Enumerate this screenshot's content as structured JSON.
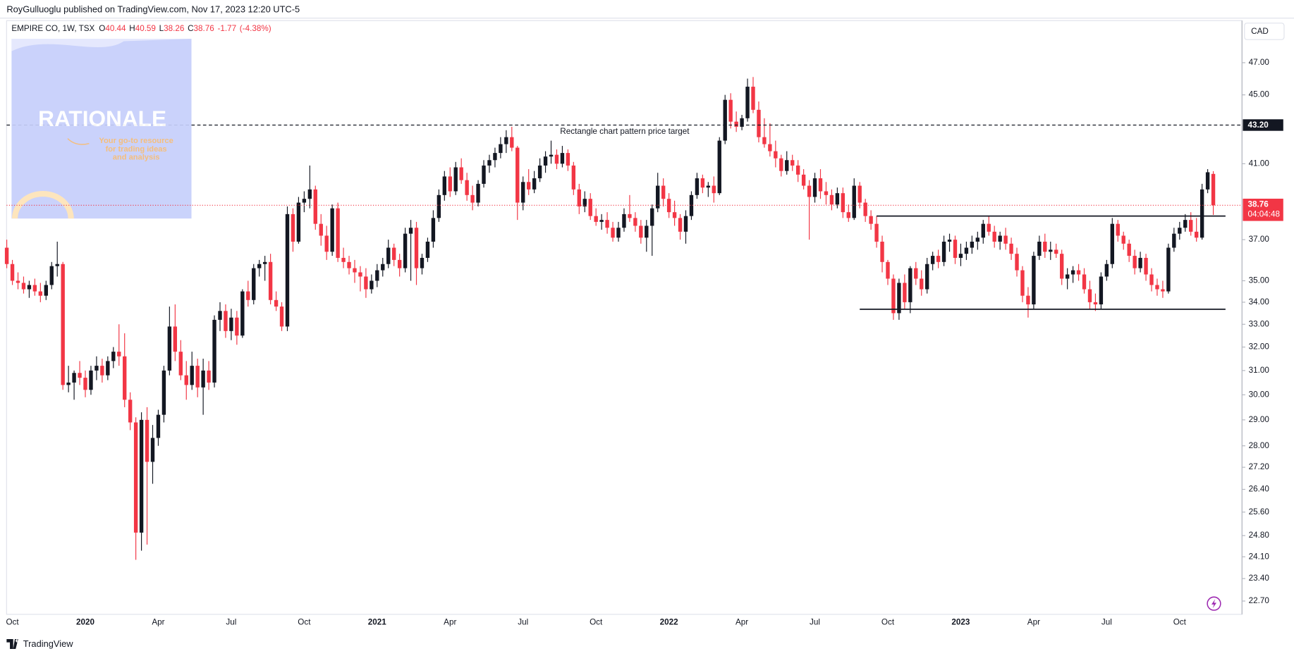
{
  "header": {
    "publisher": "RoyGulluoglu published on TradingView.com, Nov 17, 2023 12:20 UTC-5"
  },
  "watermark": {
    "title": "RATIONALE",
    "tagline": [
      "Your go-to resource",
      "for trading ideas",
      "and analysis"
    ]
  },
  "footer": {
    "brand": "TradingView"
  },
  "chart_data": {
    "type": "candlestick",
    "legend": {
      "symbol": "EMPIRE CO, 1W, TSX",
      "open_label": "O",
      "high_label": "H",
      "low_label": "L",
      "close_label": "C",
      "change": -1.77,
      "change_percent": {
        "value": -4.38,
        "label": "(-4.38%)"
      }
    },
    "currency": "CAD",
    "countdown": "04:04:48",
    "log_scale": true,
    "ylim": [
      22.37,
      49.64
    ],
    "yticks": [
      {
        "value": 22.7,
        "label": "22.70"
      },
      {
        "value": 23.4,
        "label": "23.40"
      },
      {
        "value": 24.1,
        "label": "24.10"
      },
      {
        "value": 24.8,
        "label": "24.80"
      },
      {
        "value": 25.6,
        "label": "25.60"
      },
      {
        "value": 26.4,
        "label": "26.40"
      },
      {
        "value": 27.2,
        "label": "27.20"
      },
      {
        "value": 28,
        "label": "28.00"
      },
      {
        "value": 29,
        "label": "29.00"
      },
      {
        "value": 30,
        "label": "30.00"
      },
      {
        "value": 31,
        "label": "31.00"
      },
      {
        "value": 32,
        "label": "32.00"
      },
      {
        "value": 33,
        "label": "33.00"
      },
      {
        "value": 34,
        "label": "34.00"
      },
      {
        "value": 35,
        "label": "35.00"
      },
      {
        "value": 37,
        "label": "37.00"
      },
      {
        "value": 41,
        "label": "41.00"
      },
      {
        "value": 45,
        "label": "45.00"
      },
      {
        "value": 47,
        "label": "47.00"
      }
    ],
    "target_line": {
      "value": 43.2,
      "label": "43.20",
      "text": "Rectangle chart pattern price target"
    },
    "rectangle": {
      "top": 38.2,
      "bottom": 33.68
    },
    "categories": [
      null,
      "Oct",
      null,
      null,
      null,
      null,
      null,
      null,
      null,
      null,
      null,
      null,
      null,
      null,
      "2020",
      null,
      null,
      null,
      null,
      null,
      null,
      null,
      null,
      null,
      null,
      null,
      null,
      "Apr",
      null,
      null,
      null,
      null,
      null,
      null,
      null,
      null,
      null,
      null,
      null,
      null,
      "Jul",
      null,
      null,
      null,
      null,
      null,
      null,
      null,
      null,
      null,
      null,
      null,
      null,
      "Oct",
      null,
      null,
      null,
      null,
      null,
      null,
      null,
      null,
      null,
      null,
      null,
      null,
      "2021",
      null,
      null,
      null,
      null,
      null,
      null,
      null,
      null,
      null,
      null,
      null,
      null,
      "Apr",
      null,
      null,
      null,
      null,
      null,
      null,
      null,
      null,
      null,
      null,
      null,
      null,
      "Jul",
      null,
      null,
      null,
      null,
      null,
      null,
      null,
      null,
      null,
      null,
      null,
      null,
      "Oct",
      null,
      null,
      null,
      null,
      null,
      null,
      null,
      null,
      null,
      null,
      null,
      null,
      "2022",
      null,
      null,
      null,
      null,
      null,
      null,
      null,
      null,
      null,
      null,
      null,
      null,
      "Apr",
      null,
      null,
      null,
      null,
      null,
      null,
      null,
      null,
      null,
      null,
      null,
      null,
      "Jul",
      null,
      null,
      null,
      null,
      null,
      null,
      null,
      null,
      null,
      null,
      null,
      null,
      "Oct",
      null,
      null,
      null,
      null,
      null,
      null,
      null,
      null,
      null,
      null,
      null,
      null,
      "2023",
      null,
      null,
      null,
      null,
      null,
      null,
      null,
      null,
      null,
      null,
      null,
      null,
      "Apr",
      null,
      null,
      null,
      null,
      null,
      null,
      null,
      null,
      null,
      null,
      null,
      null,
      "Jul",
      null,
      null,
      null,
      null,
      null,
      null,
      null,
      null,
      null,
      null,
      null,
      null,
      "Oct",
      null,
      null,
      null,
      null,
      null,
      null
    ],
    "series": [
      {
        "up_color": "#131722",
        "down_color": "#f23645",
        "open": [
          36.6,
          35.8,
          35.0,
          34.9,
          34.6,
          34.8,
          34.5,
          34.3,
          34.8,
          35.7,
          35.8,
          30.4,
          30.5,
          30.9,
          30.7,
          30.2,
          31.0,
          31.2,
          30.8,
          31.4,
          31.8,
          31.6,
          29.8,
          28.9,
          24.9,
          29.0,
          27.4,
          28.3,
          29.2,
          31.0,
          32.9,
          31.8,
          30.8,
          30.4,
          31.2,
          30.3,
          31.0,
          30.5,
          33.2,
          33.6,
          32.7,
          33.3,
          32.5,
          34.5,
          34.1,
          35.6,
          35.8,
          35.9,
          34.1,
          33.8,
          32.9,
          38.3,
          36.9,
          38.9,
          39.1,
          39.6,
          37.8,
          37.2,
          36.4,
          38.6,
          36.1,
          35.9,
          35.6,
          35.4,
          35.2,
          34.6,
          35.0,
          35.5,
          35.8,
          36.6,
          36.0,
          35.6,
          37.3,
          37.6,
          35.6,
          36.1,
          36.9,
          38.1,
          39.3,
          40.3,
          39.5,
          40.8,
          40.1,
          39.3,
          38.9,
          39.9,
          40.9,
          41.2,
          41.6,
          42.1,
          42.5,
          41.9,
          38.9,
          40.0,
          39.6,
          40.2,
          40.9,
          41.4,
          41.5,
          41.0,
          41.6,
          40.9,
          39.6,
          38.7,
          39.1,
          38.2,
          37.9,
          38.0,
          37.6,
          37.1,
          37.6,
          38.3,
          38.1,
          37.7,
          37.1,
          37.7,
          38.6,
          39.8,
          39.1,
          38.4,
          38.1,
          37.4,
          38.2,
          39.3,
          40.2,
          39.7,
          39.8,
          39.4,
          42.3,
          44.7,
          43.4,
          43.1,
          43.6,
          45.5,
          44.1,
          42.5,
          42.1,
          41.7,
          41.3,
          40.6,
          41.2,
          40.9,
          40.4,
          39.8,
          39.2,
          40.2,
          39.5,
          39.3,
          38.8,
          39.4,
          38.4,
          38.1,
          39.8,
          38.9,
          38.2,
          37.8,
          36.9,
          35.9,
          35.1,
          33.5,
          34.9,
          34.0,
          35.6,
          35.1,
          34.6,
          35.8,
          36.2,
          35.9,
          36.9,
          37.0,
          36.1,
          36.3,
          36.6,
          36.9,
          37.1,
          37.8,
          37.4,
          36.9,
          37.2,
          36.8,
          36.3,
          35.5,
          34.3,
          33.9,
          36.2,
          36.9,
          36.4,
          36.5,
          36.3,
          35.1,
          35.3,
          35.5,
          35.3,
          34.6,
          34.0,
          33.9,
          35.2,
          35.8,
          37.8,
          37.2,
          36.8,
          36.2,
          35.6,
          36.1,
          35.3,
          34.8,
          34.6,
          34.5,
          36.6,
          37.3,
          37.6,
          38.0,
          37.4,
          37.1,
          39.6,
          40.44
        ],
        "high": [
          37.0,
          36.0,
          35.4,
          35.2,
          35.0,
          35.1,
          34.9,
          35.0,
          35.9,
          36.9,
          35.9,
          31.2,
          31.0,
          31.4,
          31.0,
          31.2,
          31.6,
          31.5,
          31.6,
          32.0,
          33.0,
          32.6,
          30.1,
          29.1,
          29.3,
          29.5,
          28.8,
          29.4,
          31.2,
          33.8,
          33.9,
          32.3,
          31.4,
          31.8,
          31.5,
          31.5,
          31.4,
          33.4,
          34.0,
          33.9,
          33.7,
          33.6,
          34.6,
          35.0,
          35.8,
          36.0,
          36.2,
          36.3,
          34.5,
          34.0,
          38.7,
          38.6,
          39.2,
          39.5,
          40.9,
          39.8,
          38.3,
          37.7,
          38.8,
          38.9,
          36.6,
          36.2,
          36.0,
          35.7,
          35.6,
          35.3,
          35.8,
          36.1,
          37.0,
          36.8,
          36.3,
          37.6,
          38.0,
          37.9,
          36.3,
          37.1,
          38.5,
          39.6,
          40.6,
          40.8,
          41.1,
          41.3,
          40.5,
          39.8,
          40.1,
          41.2,
          41.5,
          41.9,
          42.5,
          42.9,
          43.1,
          42.0,
          40.3,
          40.7,
          40.6,
          41.3,
          41.7,
          42.3,
          41.8,
          42.0,
          41.8,
          41.1,
          39.9,
          39.5,
          39.4,
          38.6,
          38.3,
          38.4,
          37.9,
          37.9,
          38.6,
          39.3,
          38.4,
          38.0,
          38.0,
          38.8,
          40.5,
          40.2,
          39.4,
          39.0,
          38.3,
          38.5,
          39.5,
          40.5,
          40.4,
          40.0,
          40.3,
          42.5,
          45.0,
          45.1,
          44.0,
          43.8,
          46.0,
          46.1,
          44.6,
          43.6,
          43.3,
          42.3,
          41.5,
          41.7,
          41.5,
          41.2,
          40.7,
          40.1,
          40.5,
          40.7,
          40.0,
          39.6,
          39.7,
          39.7,
          38.8,
          40.2,
          40.0,
          39.1,
          38.5,
          38.2,
          37.2,
          36.0,
          35.3,
          35.1,
          35.3,
          35.7,
          35.9,
          35.5,
          36.1,
          36.4,
          36.5,
          37.2,
          37.3,
          37.2,
          36.8,
          36.9,
          37.2,
          37.4,
          38.0,
          38.2,
          37.7,
          37.4,
          37.6,
          37.1,
          36.6,
          35.7,
          34.7,
          36.4,
          37.2,
          37.3,
          36.9,
          36.8,
          36.5,
          35.6,
          35.7,
          35.8,
          35.6,
          35.0,
          34.4,
          35.4,
          36.0,
          38.1,
          38.0,
          37.4,
          37.0,
          36.5,
          36.4,
          36.3,
          35.6,
          35.1,
          35.0,
          36.8,
          37.6,
          37.9,
          38.3,
          38.4,
          38.1,
          39.9,
          40.7,
          40.59
        ],
        "low": [
          35.6,
          34.8,
          34.6,
          34.4,
          34.2,
          34.3,
          34.0,
          34.1,
          34.6,
          35.2,
          30.2,
          30.1,
          29.8,
          30.4,
          29.9,
          30.0,
          30.6,
          30.5,
          30.6,
          31.1,
          31.2,
          29.5,
          28.6,
          24.0,
          24.3,
          24.5,
          26.6,
          28.0,
          28.9,
          30.8,
          31.4,
          30.6,
          29.8,
          30.2,
          29.9,
          29.2,
          30.2,
          30.3,
          32.7,
          32.4,
          32.3,
          32.1,
          32.4,
          33.8,
          33.9,
          35.2,
          35.0,
          33.9,
          33.6,
          32.7,
          32.7,
          36.4,
          36.8,
          38.4,
          38.6,
          37.5,
          36.7,
          36.0,
          36.2,
          35.9,
          35.6,
          35.3,
          34.9,
          34.5,
          34.2,
          34.4,
          34.7,
          35.2,
          35.6,
          35.7,
          35.2,
          35.4,
          35.0,
          34.8,
          35.3,
          35.9,
          36.6,
          37.9,
          39.0,
          39.2,
          39.3,
          39.9,
          39.0,
          38.5,
          38.7,
          39.7,
          40.5,
          40.8,
          41.3,
          41.6,
          41.7,
          38.0,
          38.5,
          39.3,
          39.4,
          40.0,
          40.5,
          41.0,
          40.7,
          40.8,
          40.6,
          39.3,
          38.3,
          38.4,
          38.0,
          37.7,
          37.5,
          37.3,
          36.9,
          36.9,
          37.4,
          37.9,
          37.4,
          36.8,
          36.4,
          36.2,
          38.4,
          38.7,
          38.1,
          37.7,
          37.0,
          36.8,
          38.0,
          39.1,
          39.4,
          39.2,
          38.9,
          39.3,
          42.1,
          43.0,
          42.8,
          42.9,
          43.4,
          43.9,
          42.2,
          41.9,
          41.4,
          40.8,
          40.3,
          40.4,
          40.6,
          40.0,
          39.6,
          37.0,
          38.9,
          39.1,
          38.8,
          38.5,
          38.6,
          38.1,
          37.9,
          38.0,
          38.6,
          37.9,
          37.5,
          36.6,
          35.4,
          34.8,
          33.2,
          33.2,
          33.7,
          33.5,
          34.8,
          34.3,
          34.4,
          35.5,
          35.6,
          35.7,
          36.4,
          35.8,
          35.7,
          36.0,
          36.3,
          36.5,
          36.8,
          37.2,
          36.6,
          36.5,
          36.5,
          36.0,
          35.2,
          34.0,
          33.3,
          33.7,
          36.0,
          36.1,
          36.0,
          36.1,
          34.8,
          34.6,
          34.9,
          35.0,
          34.4,
          33.7,
          33.6,
          33.7,
          35.0,
          35.6,
          36.9,
          36.5,
          35.9,
          35.3,
          35.4,
          35.0,
          34.5,
          34.3,
          34.2,
          34.4,
          36.4,
          37.0,
          37.4,
          37.2,
          36.9,
          37.0,
          39.4,
          38.26
        ],
        "close": [
          35.8,
          35.0,
          34.9,
          34.6,
          34.8,
          34.5,
          34.3,
          34.8,
          35.7,
          35.8,
          30.4,
          30.5,
          30.9,
          30.7,
          30.2,
          31.0,
          31.2,
          30.8,
          31.4,
          31.8,
          31.6,
          29.8,
          28.9,
          24.9,
          29.0,
          27.4,
          28.3,
          29.2,
          31.0,
          32.9,
          31.8,
          30.8,
          30.4,
          31.2,
          30.3,
          31.0,
          30.5,
          33.2,
          33.6,
          32.7,
          33.3,
          32.5,
          34.5,
          34.1,
          35.6,
          35.8,
          35.9,
          34.1,
          33.8,
          32.9,
          38.3,
          36.9,
          38.9,
          39.1,
          39.6,
          37.8,
          37.2,
          36.4,
          38.6,
          36.1,
          35.9,
          35.6,
          35.4,
          35.2,
          34.6,
          35.0,
          35.5,
          35.8,
          36.6,
          36.0,
          35.6,
          37.3,
          37.6,
          35.6,
          36.1,
          36.9,
          38.1,
          39.3,
          40.3,
          39.5,
          40.8,
          40.1,
          39.3,
          38.9,
          39.9,
          40.9,
          41.2,
          41.6,
          42.1,
          42.5,
          41.9,
          38.9,
          40.0,
          39.6,
          40.2,
          40.9,
          41.4,
          41.5,
          41.0,
          41.6,
          40.9,
          39.6,
          38.7,
          39.1,
          38.2,
          37.9,
          38.0,
          37.6,
          37.1,
          37.6,
          38.3,
          38.1,
          37.7,
          37.1,
          37.7,
          38.6,
          39.8,
          39.1,
          38.4,
          38.1,
          37.4,
          38.2,
          39.3,
          40.2,
          39.7,
          39.8,
          39.4,
          42.3,
          44.7,
          43.4,
          43.1,
          43.6,
          45.5,
          44.1,
          42.5,
          42.1,
          41.7,
          41.3,
          40.6,
          41.2,
          40.9,
          40.4,
          39.8,
          39.2,
          40.2,
          39.5,
          39.3,
          38.8,
          39.4,
          38.4,
          38.1,
          39.8,
          38.9,
          38.2,
          37.8,
          36.9,
          35.9,
          35.1,
          33.5,
          34.9,
          34.0,
          35.6,
          35.1,
          34.6,
          35.8,
          36.2,
          35.9,
          36.9,
          37.0,
          36.1,
          36.3,
          36.6,
          36.9,
          37.1,
          37.8,
          37.4,
          36.9,
          37.2,
          36.8,
          36.3,
          35.5,
          34.3,
          33.9,
          36.2,
          36.9,
          36.4,
          36.5,
          36.3,
          35.1,
          35.3,
          35.5,
          35.3,
          34.6,
          34.0,
          33.9,
          35.2,
          35.8,
          37.8,
          37.2,
          36.8,
          36.2,
          35.6,
          36.1,
          35.3,
          34.8,
          34.6,
          34.5,
          36.6,
          37.3,
          37.6,
          38.0,
          37.4,
          37.1,
          39.6,
          40.53,
          38.76
        ]
      }
    ]
  }
}
